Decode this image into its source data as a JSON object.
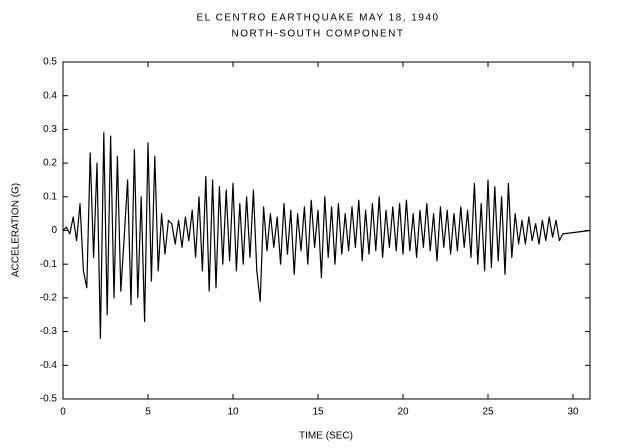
{
  "chart_data": {
    "type": "line",
    "title": "EL CENTRO EARTHQUAKE  MAY 18, 1940",
    "subtitle": "NORTH-SOUTH COMPONENT",
    "x_label": "TIME (SEC)",
    "y_label": "ACCELERATION (G)",
    "color": "#000000",
    "xlim": [
      0,
      31
    ],
    "ylim": [
      -0.5,
      0.5
    ],
    "xticks": [
      0,
      5,
      10,
      15,
      20,
      25,
      30
    ],
    "yticks": [
      0.5,
      0.4,
      0.3,
      0.2,
      0.1,
      0,
      -0.1,
      -0.2,
      -0.3,
      -0.4,
      -0.5
    ],
    "x": [
      0,
      0.2,
      0.4,
      0.6,
      0.8,
      1,
      1.2,
      1.4,
      1.6,
      1.8,
      2,
      2.2,
      2.4,
      2.6,
      2.8,
      3,
      3.2,
      3.4,
      3.6,
      3.8,
      4,
      4.2,
      4.4,
      4.6,
      4.8,
      5,
      5.2,
      5.4,
      5.6,
      5.8,
      6,
      6.2,
      6.4,
      6.6,
      6.8,
      7,
      7.2,
      7.4,
      7.6,
      7.8,
      8,
      8.2,
      8.4,
      8.6,
      8.8,
      9,
      9.2,
      9.4,
      9.6,
      9.8,
      10,
      10.2,
      10.4,
      10.6,
      10.8,
      11,
      11.2,
      11.4,
      11.6,
      11.8,
      12,
      12.2,
      12.4,
      12.6,
      12.8,
      13,
      13.2,
      13.4,
      13.6,
      13.8,
      14,
      14.2,
      14.4,
      14.6,
      14.8,
      15,
      15.2,
      15.4,
      15.6,
      15.8,
      16,
      16.2,
      16.4,
      16.6,
      16.8,
      17,
      17.2,
      17.4,
      17.6,
      17.8,
      18,
      18.2,
      18.4,
      18.6,
      18.8,
      19,
      19.2,
      19.4,
      19.6,
      19.8,
      20,
      20.2,
      20.4,
      20.6,
      20.8,
      21,
      21.2,
      21.4,
      21.6,
      21.8,
      22,
      22.2,
      22.4,
      22.6,
      22.8,
      23,
      23.2,
      23.4,
      23.6,
      23.8,
      24,
      24.2,
      24.4,
      24.6,
      24.8,
      25,
      25.2,
      25.4,
      25.6,
      25.8,
      26,
      26.2,
      26.4,
      26.6,
      26.8,
      27,
      27.2,
      27.4,
      27.6,
      27.8,
      28,
      28.2,
      28.4,
      28.6,
      28.8,
      29,
      29.2,
      29.4,
      31
    ],
    "values": [
      0,
      0.01,
      -0.01,
      0.04,
      -0.03,
      0.08,
      -0.12,
      -0.17,
      0.23,
      -0.08,
      0.2,
      -0.32,
      0.29,
      -0.25,
      0.28,
      -0.2,
      0.22,
      -0.18,
      -0.02,
      0.15,
      -0.22,
      0.24,
      -0.2,
      0.1,
      -0.27,
      0.26,
      -0.15,
      0.22,
      -0.12,
      0.05,
      -0.07,
      0.03,
      0.02,
      -0.04,
      0.03,
      -0.05,
      0.04,
      -0.03,
      0.06,
      -0.08,
      0.1,
      -0.12,
      0.16,
      -0.18,
      0.15,
      -0.17,
      0.13,
      -0.1,
      0.12,
      -0.09,
      0.14,
      -0.12,
      0.08,
      -0.1,
      0.1,
      -0.08,
      0.12,
      -0.12,
      -0.21,
      0.07,
      -0.06,
      0.05,
      -0.05,
      0.04,
      -0.1,
      0.08,
      -0.07,
      0.06,
      -0.13,
      0.05,
      -0.06,
      0.07,
      -0.1,
      0.09,
      -0.05,
      0.06,
      -0.14,
      0.1,
      -0.08,
      0.07,
      -0.1,
      0.08,
      -0.07,
      0.05,
      -0.06,
      0.07,
      -0.05,
      0.09,
      -0.09,
      0.06,
      -0.07,
      0.08,
      -0.06,
      0.1,
      -0.08,
      0.06,
      -0.05,
      0.07,
      -0.06,
      0.08,
      -0.07,
      0.09,
      -0.06,
      0.05,
      -0.08,
      0.06,
      -0.05,
      0.08,
      -0.06,
      0.05,
      -0.09,
      0.07,
      -0.05,
      0.06,
      -0.07,
      0.05,
      -0.06,
      0.07,
      -0.05,
      0.06,
      -0.08,
      0.14,
      -0.1,
      0.08,
      -0.12,
      0.15,
      -0.11,
      0.13,
      -0.09,
      0.1,
      -0.13,
      0.14,
      -0.08,
      0.05,
      -0.04,
      0.03,
      -0.04,
      0.04,
      -0.03,
      0.02,
      -0.04,
      0.03,
      -0.03,
      0.04,
      -0.02,
      0.03,
      -0.03,
      -0.01,
      0
    ]
  }
}
